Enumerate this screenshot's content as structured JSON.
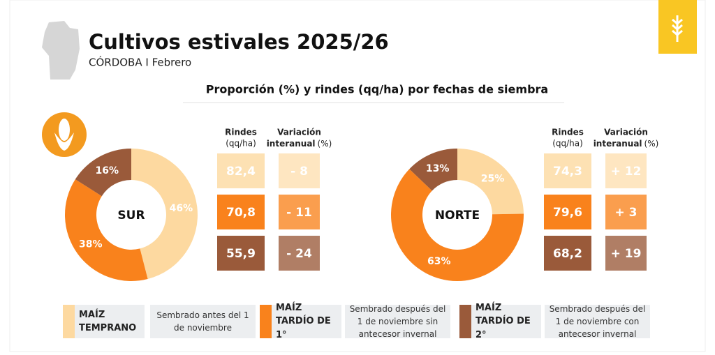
{
  "header": {
    "title": "Cultivos estivales 2025/26",
    "subtitle": "CÓRDOBA I Febrero"
  },
  "section_title": "Proporción (%) y rindes (qq/ha) por fechas de siembra",
  "chart_data": [
    {
      "type": "pie",
      "center_label": "SUR",
      "values": [
        46,
        38,
        16
      ],
      "value_labels": [
        "46%",
        "38%",
        "16%"
      ],
      "colors": [
        "#fdd9a0",
        "#f9821c",
        "#9a5a3a"
      ]
    },
    {
      "type": "pie",
      "center_label": "NORTE",
      "values": [
        25,
        63,
        13
      ],
      "value_labels": [
        "25%",
        "63%",
        "13%"
      ],
      "colors": [
        "#fdd9a0",
        "#f9821c",
        "#9a5a3a"
      ]
    }
  ],
  "table_headers": [
    {
      "title": "Rindes",
      "unit": "(qq/ha)"
    },
    {
      "title": "Variación",
      "title2": "interanual",
      "unit": "(%)"
    }
  ],
  "tables": [
    {
      "rows": [
        [
          "82,4",
          "- 8"
        ],
        [
          "70,8",
          "- 11"
        ],
        [
          "55,9",
          "- 24"
        ]
      ]
    },
    {
      "rows": [
        [
          "74,3",
          "+ 12"
        ],
        [
          "79,6",
          "+ 3"
        ],
        [
          "68,2",
          "+ 19"
        ]
      ]
    }
  ],
  "legend": [
    {
      "name": "MAÍZ TEMPRANO",
      "description": "Sembrado antes del 1 de noviembre",
      "color": "#fdd9a0"
    },
    {
      "name": "MAÍZ TARDÍO DE 1°",
      "description": "Sembrado después del 1 de noviembre sin antecesor invernal",
      "color": "#f9821c"
    },
    {
      "name": "MAÍZ TARDÍO DE 2°",
      "description": "Sembrado después del 1 de noviembre con antecesor invernal",
      "color": "#9a5a3a"
    }
  ]
}
